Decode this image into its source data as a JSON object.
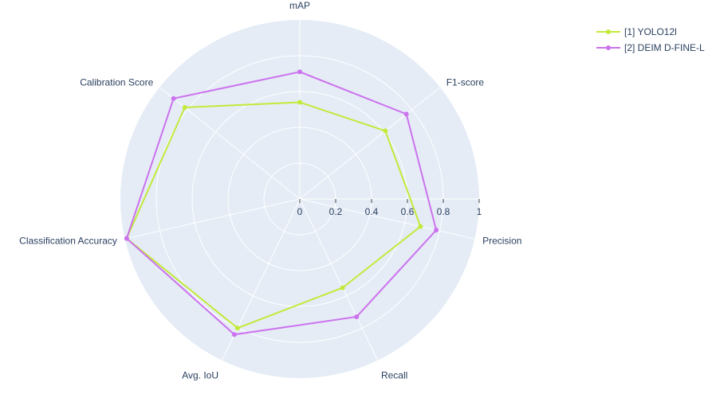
{
  "chart_data": {
    "type": "radar",
    "axes": [
      "mAP",
      "F1-score",
      "Precision",
      "Recall",
      "Classification Accuracy",
      "Avg. IoU",
      "Calibration Score"
    ],
    "axis_order_for_drawing": [
      "mAP",
      "F1-score",
      "Precision",
      "Recall",
      "Avg. IoU",
      "Classification Accuracy",
      "Calibration Score"
    ],
    "radial_ticks": [
      "0",
      "0.2",
      "0.4",
      "0.6",
      "0.8",
      "1"
    ],
    "radial_range": [
      0,
      1
    ],
    "legend_position": "top-right",
    "series": [
      {
        "name": "[1] YOLO12l",
        "color": "#c2ea3a",
        "values": {
          "mAP": 0.54,
          "F1-score": 0.61,
          "Precision": 0.69,
          "Recall": 0.55,
          "Avg. IoU": 0.8,
          "Classification Accuracy": 0.99,
          "Calibration Score": 0.82
        }
      },
      {
        "name": "[2] DEIM D-FINE-L",
        "color": "#cc72ee",
        "values": {
          "mAP": 0.71,
          "F1-score": 0.76,
          "Precision": 0.78,
          "Recall": 0.73,
          "Avg. IoU": 0.84,
          "Classification Accuracy": 0.99,
          "Calibration Score": 0.9
        }
      }
    ],
    "polar_bgcolor": "#e5ecf6",
    "grid_color": "#ffffff"
  }
}
